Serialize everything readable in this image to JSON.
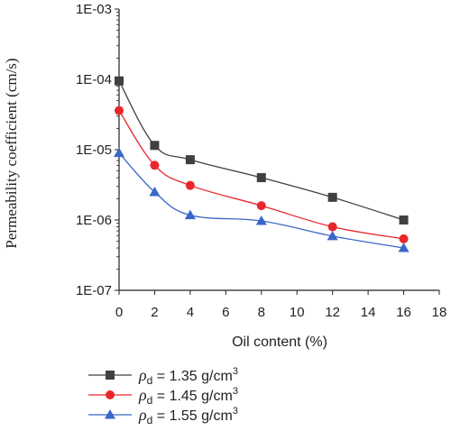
{
  "chart_data": {
    "type": "line",
    "xlabel": "Oil content (%)",
    "ylabel": "Permeability coefficient (cm/s)",
    "x_ticks": [
      "0",
      "2",
      "4",
      "6",
      "8",
      "10",
      "12",
      "14",
      "16",
      "18"
    ],
    "xlim": [
      0,
      18
    ],
    "y_scale": "log",
    "y_ticks": [
      "1E-07",
      "1E-06",
      "1E-05",
      "1E-04",
      "1E-03"
    ],
    "ylim": [
      1e-07,
      0.001
    ],
    "legend_position": "bottom",
    "series": [
      {
        "name": "ρd = 1.35 g/cm3",
        "legend_parts": {
          "symbol": "ρ",
          "sub": "d",
          "text": " = 1.35 g/cm",
          "sup": "3"
        },
        "marker": "square",
        "color": "#404040",
        "x": [
          0,
          2,
          4,
          8,
          12,
          16
        ],
        "y": [
          9.5e-05,
          1.15e-05,
          7.2e-06,
          4e-06,
          2.1e-06,
          1e-06
        ]
      },
      {
        "name": "ρd = 1.45 g/cm3",
        "legend_parts": {
          "symbol": "ρ",
          "sub": "d",
          "text": " = 1.45 g/cm",
          "sup": "3"
        },
        "marker": "circle",
        "color": "#e8272c",
        "x": [
          0,
          2,
          4,
          8,
          12,
          16
        ],
        "y": [
          3.6e-05,
          6e-06,
          3.1e-06,
          1.6e-06,
          8e-07,
          5.4e-07
        ]
      },
      {
        "name": "ρd = 1.55 g/cm3",
        "legend_parts": {
          "symbol": "ρ",
          "sub": "d",
          "text": " = 1.55 g/cm",
          "sup": "3"
        },
        "marker": "triangle",
        "color": "#3a67c8",
        "x": [
          0,
          2,
          4,
          8,
          12,
          16
        ],
        "y": [
          9e-06,
          2.5e-06,
          1.17e-06,
          9.7e-07,
          5.9e-07,
          4e-07
        ]
      }
    ]
  }
}
